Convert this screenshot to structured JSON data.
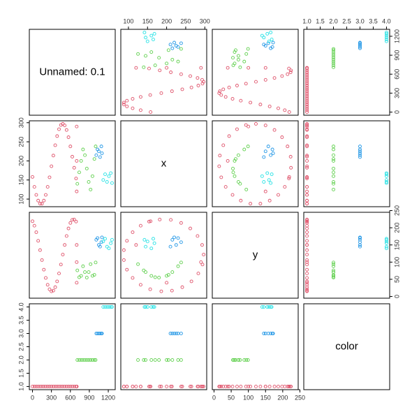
{
  "chart_data": {
    "type": "scatter_matrix",
    "palette": [
      "#DF536B",
      "#61D04F",
      "#2297E6",
      "#28E2E5"
    ],
    "variables": [
      {
        "name": "Unnamed: 0.1",
        "lim": [
          -50,
          1310
        ],
        "ticks": [
          0,
          300,
          600,
          900,
          1200
        ],
        "values": [
          0,
          30,
          60,
          90,
          120,
          150,
          180,
          210,
          240,
          270,
          300,
          330,
          360,
          390,
          420,
          450,
          480,
          510,
          540,
          570,
          600,
          630,
          660,
          690,
          700,
          700,
          700,
          710,
          740,
          770,
          800,
          830,
          860,
          890,
          920,
          950,
          980,
          1000,
          1010,
          1030,
          1050,
          1070,
          1090,
          1100,
          1120,
          1150,
          1180,
          1210,
          1240,
          1260
        ]
      },
      {
        "name": "x",
        "lim": [
          80,
          305
        ],
        "ticks": [
          100,
          150,
          200,
          250,
          300
        ],
        "values": [
          158,
          132,
          111,
          96,
          88,
          88,
          96,
          111,
          132,
          157,
          186,
          214,
          241,
          265,
          283,
          294,
          297,
          293,
          281,
          262,
          238,
          211,
          182,
          154,
          120,
          290,
          200,
          140,
          170,
          200,
          230,
          215,
          180,
          145,
          125,
          160,
          205,
          238,
          215,
          230,
          225,
          210,
          238,
          220,
          150,
          165,
          145,
          160,
          168,
          142
        ]
      },
      {
        "name": "y",
        "lim": [
          -5,
          245
        ],
        "ticks": [
          0,
          50,
          100,
          150,
          200,
          250
        ],
        "values": [
          219,
          206,
          187,
          162,
          135,
          106,
          78,
          54,
          34,
          21,
          15,
          17,
          27,
          44,
          67,
          93,
          122,
          150,
          176,
          198,
          214,
          223,
          224,
          218,
          150,
          100,
          40,
          76,
          56,
          60,
          88,
          71,
          55,
          71,
          94,
          60,
          63,
          99,
          165,
          170,
          150,
          145,
          158,
          172,
          160,
          168,
          145,
          140,
          155,
          165
        ]
      },
      {
        "name": "color",
        "lim": [
          0.88,
          4.12
        ],
        "ticks": [
          {
            "value": 1,
            "label": "1.0"
          },
          {
            "value": 1.5,
            "label": "1.5"
          },
          {
            "value": 2,
            "label": "2.0"
          },
          {
            "value": 2.5,
            "label": "2.5"
          },
          {
            "value": 3,
            "label": "3.0"
          },
          {
            "value": 3.5,
            "label": "3.5"
          },
          {
            "value": 4,
            "label": "4.0"
          }
        ],
        "values": [
          1,
          1,
          1,
          1,
          1,
          1,
          1,
          1,
          1,
          1,
          1,
          1,
          1,
          1,
          1,
          1,
          1,
          1,
          1,
          1,
          1,
          1,
          1,
          1,
          1,
          1,
          1,
          2,
          2,
          2,
          2,
          2,
          2,
          2,
          2,
          2,
          2,
          2,
          3,
          3,
          3,
          3,
          3,
          3,
          4,
          4,
          4,
          4,
          4,
          4
        ]
      }
    ]
  }
}
